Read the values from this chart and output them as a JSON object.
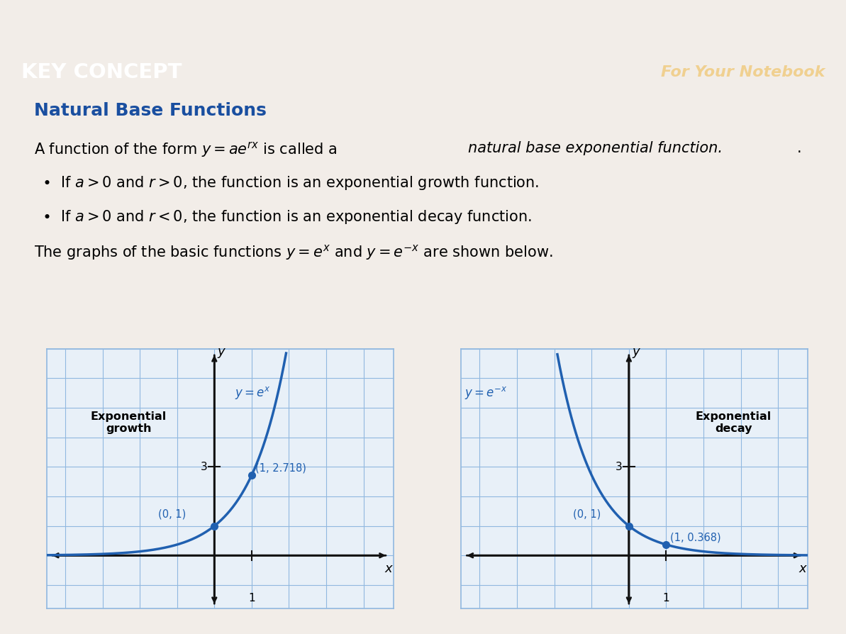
{
  "key_concept_text": "KEY CONCEPT",
  "notebook_text": "For Your Notebook",
  "key_concept_bg": "#3a52b0",
  "header_text_color": "#ffffff",
  "notebook_text_color": "#f0d090",
  "section_title": "Natural Base Functions",
  "section_title_color": "#1a4fa0",
  "body_bg": "#f2ede8",
  "graph_bg": "#e8f0f8",
  "graph_border": "#5a8acc",
  "curve_color": "#2060b0",
  "grid_color": "#90b8e0",
  "axis_color": "#111111",
  "growth_label": "Exponential\ngrowth",
  "decay_label": "Exponential\ndecay",
  "point1a_label": "(0, 1)",
  "point1b_label": "(1, 2.718)",
  "point2a_label": "(0, 1)",
  "point2b_label": "(1, 0.368)"
}
